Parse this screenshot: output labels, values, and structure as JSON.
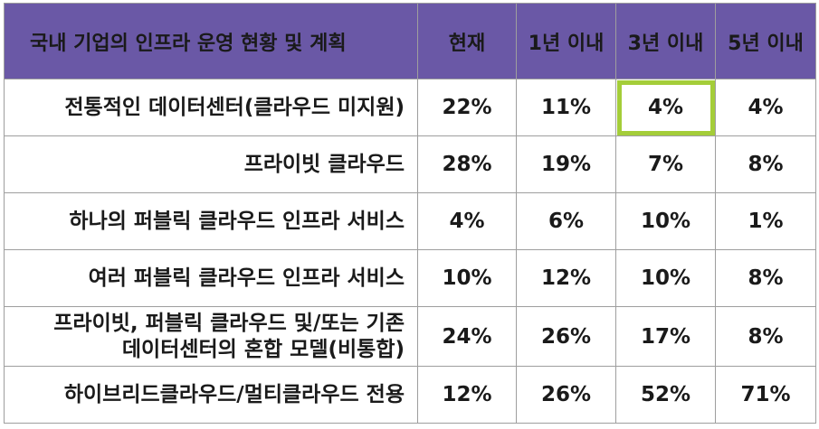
{
  "table": {
    "header": {
      "row_header": "국내 기업의 인프라 운영 현황 및 계획",
      "columns": [
        "현재",
        "1년 이내",
        "3년 이내",
        "5년 이내"
      ]
    },
    "rows": [
      {
        "label_lines": [
          "전통적인 데이터센터(클라우드 미지원)"
        ],
        "values": [
          "22%",
          "11%",
          "4%",
          "4%"
        ]
      },
      {
        "label_lines": [
          "프라이빗 클라우드"
        ],
        "values": [
          "28%",
          "19%",
          "7%",
          "8%"
        ]
      },
      {
        "label_lines": [
          "하나의 퍼블릭 클라우드 인프라 서비스"
        ],
        "values": [
          "4%",
          "6%",
          "10%",
          "1%"
        ]
      },
      {
        "label_lines": [
          "여러 퍼블릭 클라우드 인프라 서비스"
        ],
        "values": [
          "10%",
          "12%",
          "10%",
          "8%"
        ]
      },
      {
        "label_lines": [
          "프라이빗, 퍼블릭 클라우드 및/또는 기존",
          "데이터센터의 혼합 모델(비통합)"
        ],
        "values": [
          "24%",
          "26%",
          "17%",
          "8%"
        ]
      },
      {
        "label_lines": [
          "하이브리드클라우드/멀티클라우드  전용"
        ],
        "values": [
          "12%",
          "26%",
          "52%",
          "71%"
        ]
      }
    ],
    "highlight_color": "#a4cd39",
    "header_color": "#6a58a6"
  }
}
